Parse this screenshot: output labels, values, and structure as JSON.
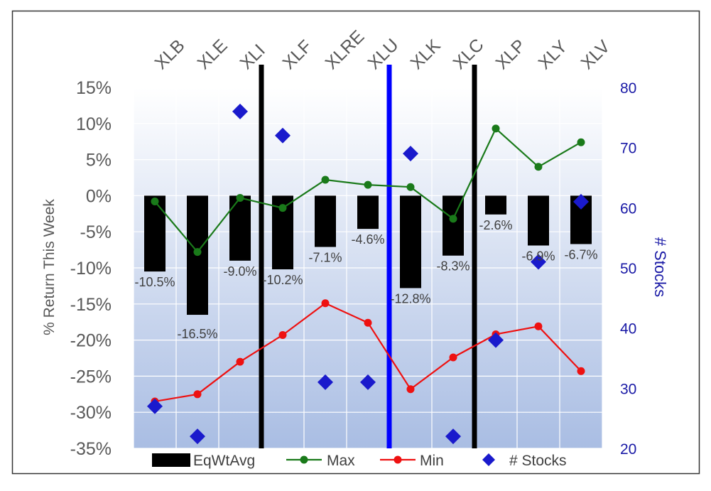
{
  "chart_data": {
    "type": "bar",
    "title": "",
    "categories": [
      "XLB",
      "XLE",
      "XLI",
      "XLF",
      "XLRE",
      "XLU",
      "XLK",
      "XLC",
      "XLP",
      "XLY",
      "XLV"
    ],
    "ylabel": "% Return This Week",
    "y2label": "# Stocks",
    "ylim": [
      -35,
      15
    ],
    "yticks": [
      15,
      10,
      5,
      0,
      -5,
      -10,
      -15,
      -20,
      -25,
      -30,
      -35
    ],
    "ytick_labels": [
      "15%",
      "10%",
      "5%",
      "0%",
      "-5%",
      "-10%",
      "-15%",
      "-20%",
      "-25%",
      "-30%",
      "-35%"
    ],
    "y2lim": [
      20,
      80
    ],
    "y2ticks": [
      80,
      70,
      60,
      50,
      40,
      30,
      20
    ],
    "y2tick_labels": [
      "80",
      "70",
      "60",
      "50",
      "40",
      "30",
      "20"
    ],
    "grid": true,
    "legend_position": "bottom",
    "series": [
      {
        "name": "EqWtAvg",
        "kind": "bar",
        "axis": "left",
        "color": "#000000",
        "values": [
          -10.5,
          -16.5,
          -9.0,
          -10.2,
          -7.1,
          -4.6,
          -12.8,
          -8.3,
          -2.6,
          -6.9,
          -6.7
        ],
        "labels": [
          "-10.5%",
          "-16.5%",
          "-9.0%",
          "-10.2%",
          "-7.1%",
          "-4.6%",
          "-12.8%",
          "-8.3%",
          "-2.6%",
          "-6.9%",
          "-6.7%"
        ]
      },
      {
        "name": "Max",
        "kind": "line",
        "axis": "left",
        "color": "#1a7a1a",
        "values": [
          -0.8,
          -7.8,
          -0.3,
          -1.7,
          2.2,
          1.5,
          1.2,
          -3.2,
          9.3,
          4.0,
          7.4
        ]
      },
      {
        "name": "Min",
        "kind": "line",
        "axis": "left",
        "color": "#ee1111",
        "values": [
          -28.5,
          -27.5,
          -23.0,
          -19.3,
          -14.9,
          -17.6,
          -26.8,
          -22.4,
          -19.2,
          -18.1,
          -24.3
        ]
      },
      {
        "name": "# Stocks",
        "kind": "scatter",
        "axis": "right",
        "color": "#1a1acc",
        "values": [
          27,
          22,
          76,
          72,
          31,
          31,
          69,
          22,
          38,
          51,
          61
        ]
      }
    ],
    "separators": [
      {
        "after_category": "XLI",
        "color": "#000000"
      },
      {
        "after_category": "XLU",
        "color": "#0000ff"
      },
      {
        "after_category": "XLC",
        "color": "#000000"
      }
    ],
    "colors": {
      "bg_top": "#ffffff",
      "bg_bottom": "#a9bde3",
      "grid": "#ffffff",
      "axis_text": "#595959",
      "right_axis_text": "#1a1aa6",
      "label_text": "#404040"
    }
  }
}
